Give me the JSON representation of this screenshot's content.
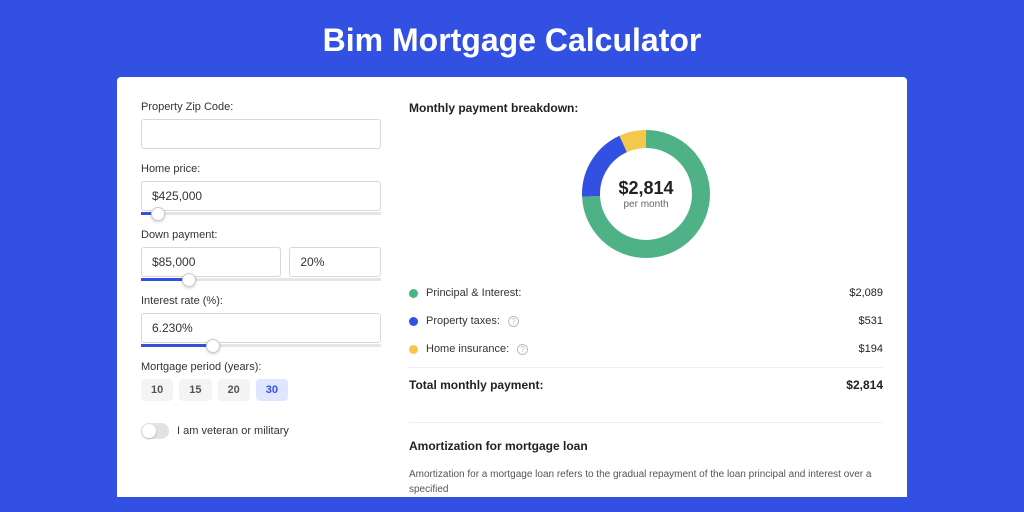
{
  "page": {
    "title": "Bim Mortgage Calculator",
    "background_color": "#3251e3",
    "card_background": "#ffffff"
  },
  "form": {
    "zip_label": "Property Zip Code:",
    "zip_value": "",
    "home_price_label": "Home price:",
    "home_price_value": "$425,000",
    "home_price_slider_percent": 7,
    "down_payment_label": "Down payment:",
    "down_payment_amount": "$85,000",
    "down_payment_percent_value": "20%",
    "down_payment_slider_percent": 20,
    "interest_label": "Interest rate (%):",
    "interest_value": "6.230%",
    "interest_slider_percent": 30,
    "period_label": "Mortgage period (years):",
    "periods": [
      "10",
      "15",
      "20",
      "30"
    ],
    "period_active_index": 3,
    "veteran_label": "I am veteran or military",
    "veteran_on": false
  },
  "breakdown": {
    "title": "Monthly payment breakdown:",
    "center_amount": "$2,814",
    "center_sub": "per month",
    "donut": {
      "total": 2814,
      "segments": [
        {
          "label": "Principal & Interest:",
          "value_text": "$2,089",
          "value": 2089,
          "color": "#4fb286",
          "has_info": false
        },
        {
          "label": "Property taxes:",
          "value_text": "$531",
          "value": 531,
          "color": "#3251e3",
          "has_info": true
        },
        {
          "label": "Home insurance:",
          "value_text": "$194",
          "value": 194,
          "color": "#f4c84b",
          "has_info": true
        }
      ],
      "stroke_width": 18,
      "radius": 55,
      "background": "#ffffff"
    },
    "total_label": "Total monthly payment:",
    "total_value": "$2,814"
  },
  "amortization": {
    "title": "Amortization for mortgage loan",
    "body": "Amortization for a mortgage loan refers to the gradual repayment of the loan principal and interest over a specified"
  }
}
